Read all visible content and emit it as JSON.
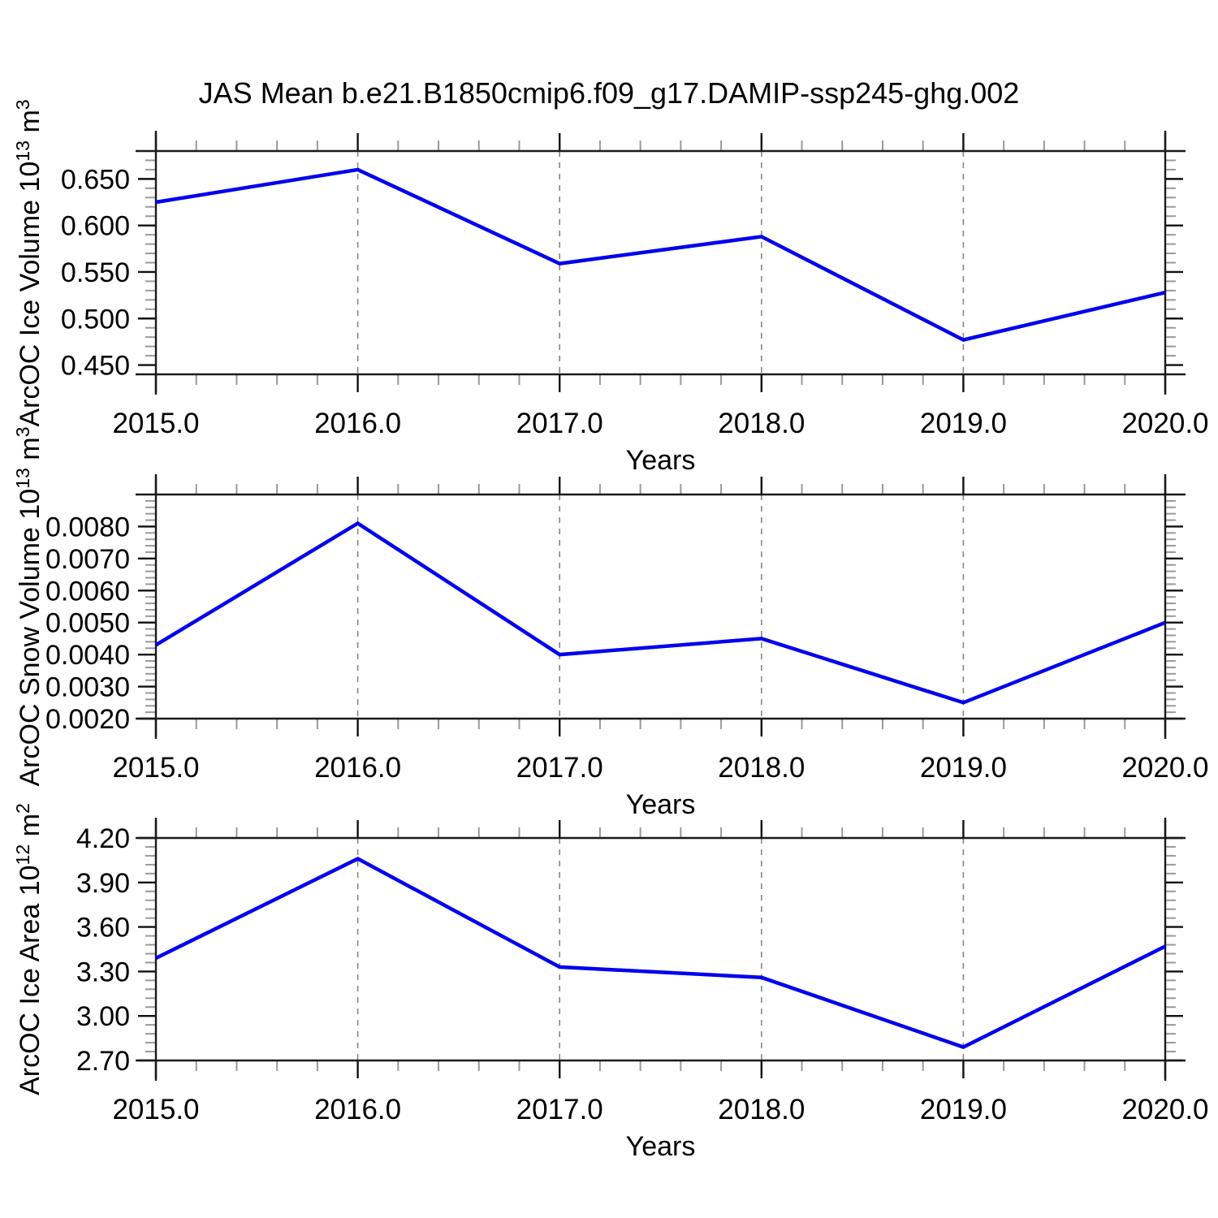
{
  "title": "JAS Mean b.e21.B1850cmip6.f09_g17.DAMIP-ssp245-ghg.002",
  "colors": {
    "line": "#0000ee",
    "grid_dashed": "#878787",
    "tick_major": "#111111",
    "tick_minor": "#9a9a9a",
    "frame": "#1a1a1a"
  },
  "chart_data": [
    {
      "type": "line",
      "title": "",
      "ylabel": "ArcOC Ice Volume 10¹³ m³",
      "ylabel_prefix": "ArcOC Ice Volume 10",
      "ylabel_exp": "13",
      "ylabel_unit": " m",
      "ylabel_unit_exp": "3",
      "xlabel": "Years",
      "x": [
        2015,
        2016,
        2017,
        2018,
        2019,
        2020
      ],
      "values": [
        0.625,
        0.66,
        0.559,
        0.588,
        0.477,
        0.528
      ],
      "xlim": [
        2015.0,
        2020.0
      ],
      "ylim": [
        0.44,
        0.68
      ],
      "yticks": [
        0.45,
        0.5,
        0.55,
        0.6,
        0.65
      ],
      "ytick_labels": [
        "0.450",
        "0.500",
        "0.550",
        "0.600",
        "0.650"
      ],
      "xticks": [
        2015,
        2016,
        2017,
        2018,
        2019,
        2020
      ],
      "xtick_labels": [
        "2015.0",
        "2016.0",
        "2017.0",
        "2018.0",
        "2019.0",
        "2020.0"
      ],
      "y_minor_step": 0.01,
      "x_minor_step": 0.2,
      "grid_x_dashed": [
        2016,
        2017,
        2018,
        2019
      ],
      "legend": "none"
    },
    {
      "type": "line",
      "title": "",
      "ylabel": "ArcOC Snow Volume 10¹³ m³",
      "ylabel_prefix": "ArcOC Snow Volume 10",
      "ylabel_exp": "13",
      "ylabel_unit": " m",
      "ylabel_unit_exp": "3",
      "xlabel": "Years",
      "x": [
        2015,
        2016,
        2017,
        2018,
        2019,
        2020
      ],
      "values": [
        0.0043,
        0.0081,
        0.004,
        0.0045,
        0.0025,
        0.005
      ],
      "xlim": [
        2015.0,
        2020.0
      ],
      "ylim": [
        0.002,
        0.009
      ],
      "yticks": [
        0.002,
        0.003,
        0.004,
        0.005,
        0.006,
        0.007,
        0.008
      ],
      "ytick_labels": [
        "0.0020",
        "0.0030",
        "0.0040",
        "0.0050",
        "0.0060",
        "0.0070",
        "0.0080"
      ],
      "xticks": [
        2015,
        2016,
        2017,
        2018,
        2019,
        2020
      ],
      "xtick_labels": [
        "2015.0",
        "2016.0",
        "2017.0",
        "2018.0",
        "2019.0",
        "2020.0"
      ],
      "y_minor_step": 0.0002,
      "x_minor_step": 0.2,
      "grid_x_dashed": [
        2016,
        2017,
        2018,
        2019
      ],
      "legend": "none"
    },
    {
      "type": "line",
      "title": "",
      "ylabel": "ArcOC Ice Area 10¹² m²",
      "ylabel_prefix": "ArcOC Ice Area 10",
      "ylabel_exp": "12",
      "ylabel_unit": " m",
      "ylabel_unit_exp": "2",
      "xlabel": "Years",
      "x": [
        2015,
        2016,
        2017,
        2018,
        2019,
        2020
      ],
      "values": [
        3.39,
        4.06,
        3.33,
        3.26,
        2.79,
        3.47
      ],
      "xlim": [
        2015.0,
        2020.0
      ],
      "ylim": [
        2.7,
        4.2
      ],
      "yticks": [
        2.7,
        3.0,
        3.3,
        3.6,
        3.9,
        4.2
      ],
      "ytick_labels": [
        "2.70",
        "3.00",
        "3.30",
        "3.60",
        "3.90",
        "4.20"
      ],
      "xticks": [
        2015,
        2016,
        2017,
        2018,
        2019,
        2020
      ],
      "xtick_labels": [
        "2015.0",
        "2016.0",
        "2017.0",
        "2018.0",
        "2019.0",
        "2020.0"
      ],
      "y_minor_step": 0.06,
      "x_minor_step": 0.2,
      "grid_x_dashed": [
        2016,
        2017,
        2018,
        2019
      ],
      "legend": "none"
    }
  ]
}
